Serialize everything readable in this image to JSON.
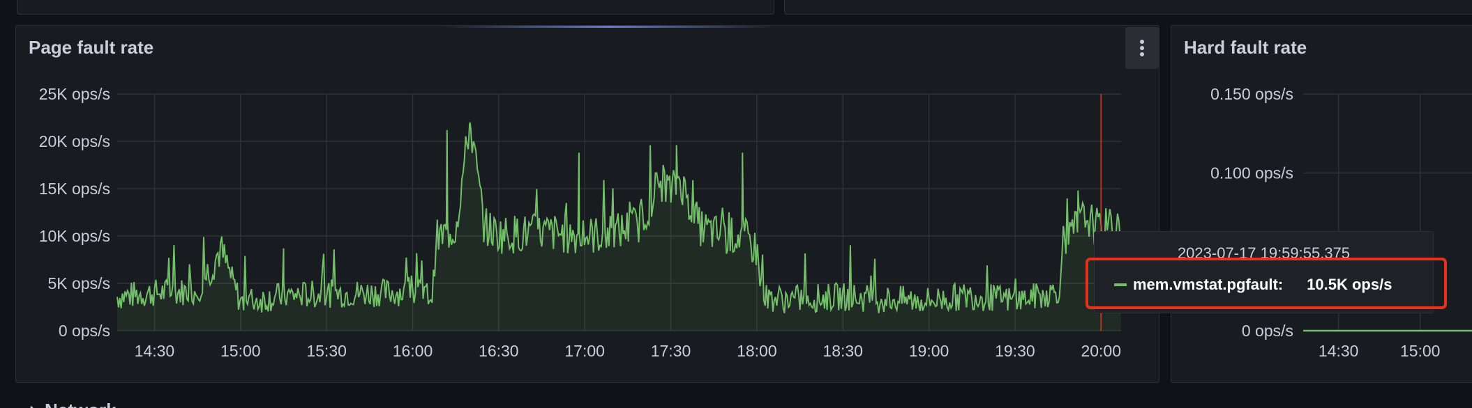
{
  "panels": [
    {
      "title": "Page fault rate",
      "menu_icon": "kebab-menu-icon",
      "chart_data": {
        "type": "area",
        "xlabel": "",
        "ylabel": "",
        "y_ticks": [
          "0 ops/s",
          "5K ops/s",
          "10K ops/s",
          "15K ops/s",
          "20K ops/s",
          "25K ops/s"
        ],
        "x_ticks": [
          "14:30",
          "15:00",
          "15:30",
          "16:00",
          "16:30",
          "17:00",
          "17:30",
          "18:00",
          "18:30",
          "19:00",
          "19:30",
          "20:00"
        ],
        "ylim": [
          0,
          25000
        ],
        "grid": true,
        "series": [
          {
            "name": "mem.vmstat.pgfault",
            "color": "#73bf69",
            "x": [
              "14:17",
              "14:30",
              "14:45",
              "14:53",
              "15:00",
              "15:15",
              "15:30",
              "15:45",
              "16:00",
              "16:07",
              "16:08",
              "16:15",
              "16:20",
              "16:25",
              "16:30",
              "16:40",
              "16:45",
              "16:50",
              "17:00",
              "17:10",
              "17:20",
              "17:25",
              "17:28",
              "17:30",
              "17:33",
              "17:36",
              "17:40",
              "17:45",
              "17:50",
              "17:55",
              "18:00",
              "18:02",
              "18:10",
              "18:30",
              "18:45",
              "19:00",
              "19:15",
              "19:30",
              "19:40",
              "19:45",
              "19:48",
              "19:52",
              "19:55",
              "20:00",
              "20:06"
            ],
            "y": [
              3600,
              4000,
              4200,
              8600,
              3000,
              3700,
              3900,
              4000,
              4100,
              3700,
              9600,
              10800,
              22000,
              11000,
              10200,
              10300,
              10400,
              10300,
              10000,
              10300,
              11500,
              15200,
              15800,
              14500,
              16200,
              13800,
              11000,
              10300,
              9900,
              10100,
              8500,
              3600,
              3300,
              3600,
              3300,
              3200,
              3700,
              3200,
              3800,
              4200,
              8900,
              11400,
              12000,
              10500,
              11800
            ]
          }
        ]
      },
      "tooltip": {
        "time": "2023-07-17 19:59:55.375",
        "series_name": "mem.vmstat.pgfault:",
        "value": "10.5K ops/s"
      }
    },
    {
      "title": "Hard fault rate",
      "chart_data": {
        "type": "line",
        "y_ticks": [
          "0 ops/s",
          "0.100 ops/s",
          "0.150 ops/s"
        ],
        "x_ticks": [
          "14:30",
          "15:00"
        ],
        "ylim": [
          0,
          0.15
        ],
        "grid": true,
        "series": [
          {
            "color": "#73bf69",
            "x": [
              "14:17",
              "15:10"
            ],
            "y": [
              0,
              0
            ]
          }
        ]
      }
    }
  ],
  "bottom_row": {
    "label": "Network",
    "icon": "chevron-right-icon"
  }
}
